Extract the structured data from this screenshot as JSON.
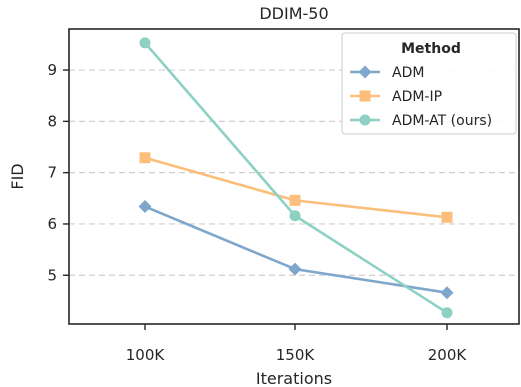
{
  "chart_data": {
    "type": "line",
    "title": "DDIM-50",
    "xlabel": "Iterations",
    "ylabel": "FID",
    "categories": [
      "100K",
      "150K",
      "200K"
    ],
    "ylim": [
      4.05,
      9.8
    ],
    "yticks": [
      5,
      6,
      7,
      8,
      9
    ],
    "grid": "horizontal-dashed",
    "legend": {
      "title": "Method",
      "position": "top-right"
    },
    "series": [
      {
        "name": "ADM",
        "values": [
          6.34,
          5.12,
          4.66
        ],
        "color": "#7fa7cc",
        "marker": "diamond"
      },
      {
        "name": "ADM-IP",
        "values": [
          7.29,
          6.46,
          6.13
        ],
        "color": "#fbbf7b",
        "marker": "square"
      },
      {
        "name": "ADM-AT (ours)",
        "values": [
          9.53,
          6.16,
          4.27
        ],
        "color": "#8dd1c5",
        "marker": "circle"
      }
    ]
  }
}
